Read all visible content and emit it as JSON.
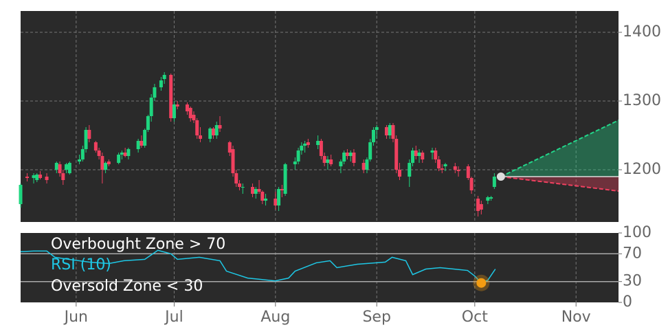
{
  "chart_data": [
    {
      "type": "candlestick",
      "xlim": [
        135,
        318
      ],
      "ylim": [
        1124,
        1431
      ],
      "yticks": [
        1200,
        1300,
        1400
      ],
      "grid": true,
      "up_color": "#1ed67f",
      "down_color": "#f0405f",
      "x": [
        135,
        137,
        139,
        140,
        141,
        143,
        146,
        147,
        148,
        149,
        150,
        153,
        154,
        155,
        156,
        158,
        159,
        160,
        161,
        162,
        165,
        166,
        167,
        168,
        171,
        172,
        173,
        174,
        175,
        176,
        178,
        179,
        181,
        182,
        183,
        186,
        187,
        188,
        189,
        190,
        193,
        194,
        195,
        196,
        199,
        200,
        201,
        202,
        203,
        206,
        207,
        208,
        209,
        210,
        213,
        214,
        215,
        216,
        219,
        220,
        221,
        222,
        223,
        226,
        227,
        228,
        229,
        230,
        233,
        234,
        235,
        236,
        237,
        240,
        241,
        242,
        243,
        244,
        247,
        248,
        249,
        250,
        251,
        254,
        255,
        256,
        257,
        258,
        261,
        262,
        263,
        264,
        265,
        268,
        269,
        272,
        273,
        275,
        276,
        278,
        279,
        280
      ],
      "open": [
        1150,
        1190,
        1188,
        1185,
        1193,
        1190,
        1200,
        1208,
        1195,
        1200,
        1195,
        1212,
        1215,
        1230,
        1258,
        1240,
        1228,
        1220,
        1200,
        1212,
        1210,
        1222,
        1225,
        1220,
        1230,
        1242,
        1235,
        1258,
        1278,
        1305,
        1320,
        1332,
        1338,
        1275,
        1295,
        1295,
        1290,
        1280,
        1272,
        1250,
        1245,
        1260,
        1250,
        1265,
        1240,
        1230,
        1195,
        1180,
        1175,
        1175,
        1165,
        1172,
        1168,
        1155,
        1158,
        1148,
        1172,
        1165,
        1208,
        1212,
        1228,
        1235,
        1240,
        1236,
        1242,
        1220,
        1210,
        1215,
        1205,
        1212,
        1225,
        1220,
        1225,
        1210,
        1200,
        1215,
        1240,
        1258,
        1262,
        1250,
        1265,
        1245,
        1200,
        1190,
        1210,
        1228,
        1220,
        1225,
        1225,
        1228,
        1215,
        1202,
        1205,
        1205,
        1200,
        1205,
        1188,
        1158,
        1150,
        1155,
        1158,
        1175
      ],
      "high": [
        1180,
        1195,
        1195,
        1195,
        1198,
        1195,
        1212,
        1212,
        1200,
        1210,
        1212,
        1222,
        1235,
        1262,
        1265,
        1242,
        1232,
        1225,
        1212,
        1215,
        1225,
        1228,
        1232,
        1232,
        1245,
        1250,
        1260,
        1280,
        1310,
        1325,
        1335,
        1342,
        1340,
        1300,
        1300,
        1298,
        1292,
        1285,
        1275,
        1262,
        1262,
        1262,
        1270,
        1278,
        1242,
        1235,
        1200,
        1185,
        1180,
        1180,
        1175,
        1185,
        1170,
        1165,
        1168,
        1175,
        1178,
        1210,
        1218,
        1232,
        1240,
        1242,
        1245,
        1250,
        1245,
        1225,
        1220,
        1222,
        1215,
        1228,
        1230,
        1228,
        1230,
        1215,
        1218,
        1245,
        1262,
        1265,
        1265,
        1268,
        1268,
        1250,
        1210,
        1215,
        1232,
        1235,
        1230,
        1228,
        1232,
        1232,
        1220,
        1208,
        1210,
        1210,
        1205,
        1208,
        1190,
        1162,
        1155,
        1162,
        1162,
        1195
      ],
      "low": [
        1145,
        1183,
        1180,
        1182,
        1186,
        1180,
        1195,
        1190,
        1178,
        1195,
        1193,
        1208,
        1212,
        1225,
        1240,
        1225,
        1215,
        1180,
        1195,
        1205,
        1208,
        1215,
        1218,
        1215,
        1225,
        1232,
        1232,
        1255,
        1270,
        1300,
        1315,
        1325,
        1270,
        1270,
        1288,
        1280,
        1270,
        1268,
        1245,
        1240,
        1240,
        1245,
        1245,
        1255,
        1220,
        1190,
        1175,
        1170,
        1165,
        1160,
        1158,
        1165,
        1150,
        1148,
        1142,
        1140,
        1160,
        1162,
        1200,
        1208,
        1222,
        1225,
        1232,
        1230,
        1215,
        1205,
        1200,
        1205,
        1195,
        1208,
        1215,
        1212,
        1205,
        1195,
        1195,
        1212,
        1235,
        1245,
        1245,
        1245,
        1240,
        1195,
        1185,
        1175,
        1205,
        1215,
        1210,
        1210,
        1215,
        1210,
        1198,
        1195,
        1198,
        1195,
        1190,
        1185,
        1165,
        1132,
        1135,
        1150,
        1155,
        1172
      ],
      "close": [
        1178,
        1188,
        1192,
        1193,
        1188,
        1185,
        1210,
        1195,
        1185,
        1208,
        1210,
        1215,
        1230,
        1258,
        1245,
        1228,
        1220,
        1200,
        1210,
        1208,
        1222,
        1225,
        1220,
        1230,
        1242,
        1235,
        1258,
        1278,
        1305,
        1320,
        1330,
        1338,
        1275,
        1295,
        1292,
        1285,
        1275,
        1272,
        1250,
        1245,
        1260,
        1250,
        1265,
        1260,
        1225,
        1195,
        1180,
        1175,
        1175,
        1165,
        1172,
        1168,
        1155,
        1158,
        1148,
        1172,
        1170,
        1208,
        1212,
        1228,
        1235,
        1238,
        1236,
        1242,
        1220,
        1210,
        1215,
        1208,
        1212,
        1225,
        1220,
        1225,
        1210,
        1200,
        1215,
        1240,
        1258,
        1262,
        1250,
        1265,
        1245,
        1200,
        1190,
        1210,
        1228,
        1220,
        1225,
        1215,
        1228,
        1215,
        1202,
        1200,
        1208,
        1200,
        1198,
        1188,
        1170,
        1140,
        1142,
        1160,
        1160,
        1190
      ],
      "forecast": {
        "x": [
          282,
          318
        ],
        "upper": [
          1190,
          1272
        ],
        "lower": [
          1190,
          1169
        ],
        "up_color": "#22d68a",
        "down_color": "#f0405f"
      }
    },
    {
      "type": "line",
      "xlim": [
        135,
        318
      ],
      "ylim": [
        0,
        100
      ],
      "yticks": [
        0,
        30,
        70,
        100
      ],
      "xticks": [
        {
          "value": 152,
          "label": "Jun"
        },
        {
          "value": 182,
          "label": "Jul"
        },
        {
          "value": 213,
          "label": "Aug"
        },
        {
          "value": 244,
          "label": "Sep"
        },
        {
          "value": 274,
          "label": "Oct"
        },
        {
          "value": 305,
          "label": "Nov"
        }
      ],
      "overbought": {
        "label": "Overbought Zone > 70",
        "value": 70
      },
      "oversold": {
        "label": "Oversold Zone < 30",
        "value": 30
      },
      "series": [
        {
          "name": "RSI (10)",
          "color": "#1ec8e6",
          "x": [
            135,
            139,
            143,
            145.5,
            149.7,
            156,
            162,
            166.6,
            173,
            177,
            181,
            183,
            189.7,
            196,
            198,
            204.5,
            208.7,
            212.9,
            217,
            219,
            225.5,
            229.7,
            231.8,
            238,
            246.6,
            248.7,
            252.9,
            255,
            259,
            263.4,
            267.6,
            271.8,
            274,
            276,
            278,
            280.3
          ],
          "values": [
            73,
            74,
            74,
            65,
            62,
            58,
            56,
            60,
            62,
            75,
            70,
            62,
            65,
            60,
            45,
            35,
            33,
            31,
            35,
            45,
            57,
            60,
            50,
            55,
            58,
            65,
            60,
            40,
            48,
            50,
            48,
            46,
            38,
            28,
            32,
            48
          ]
        }
      ],
      "signal": {
        "x": 276,
        "y": 28,
        "color": "#f39c12"
      }
    }
  ]
}
